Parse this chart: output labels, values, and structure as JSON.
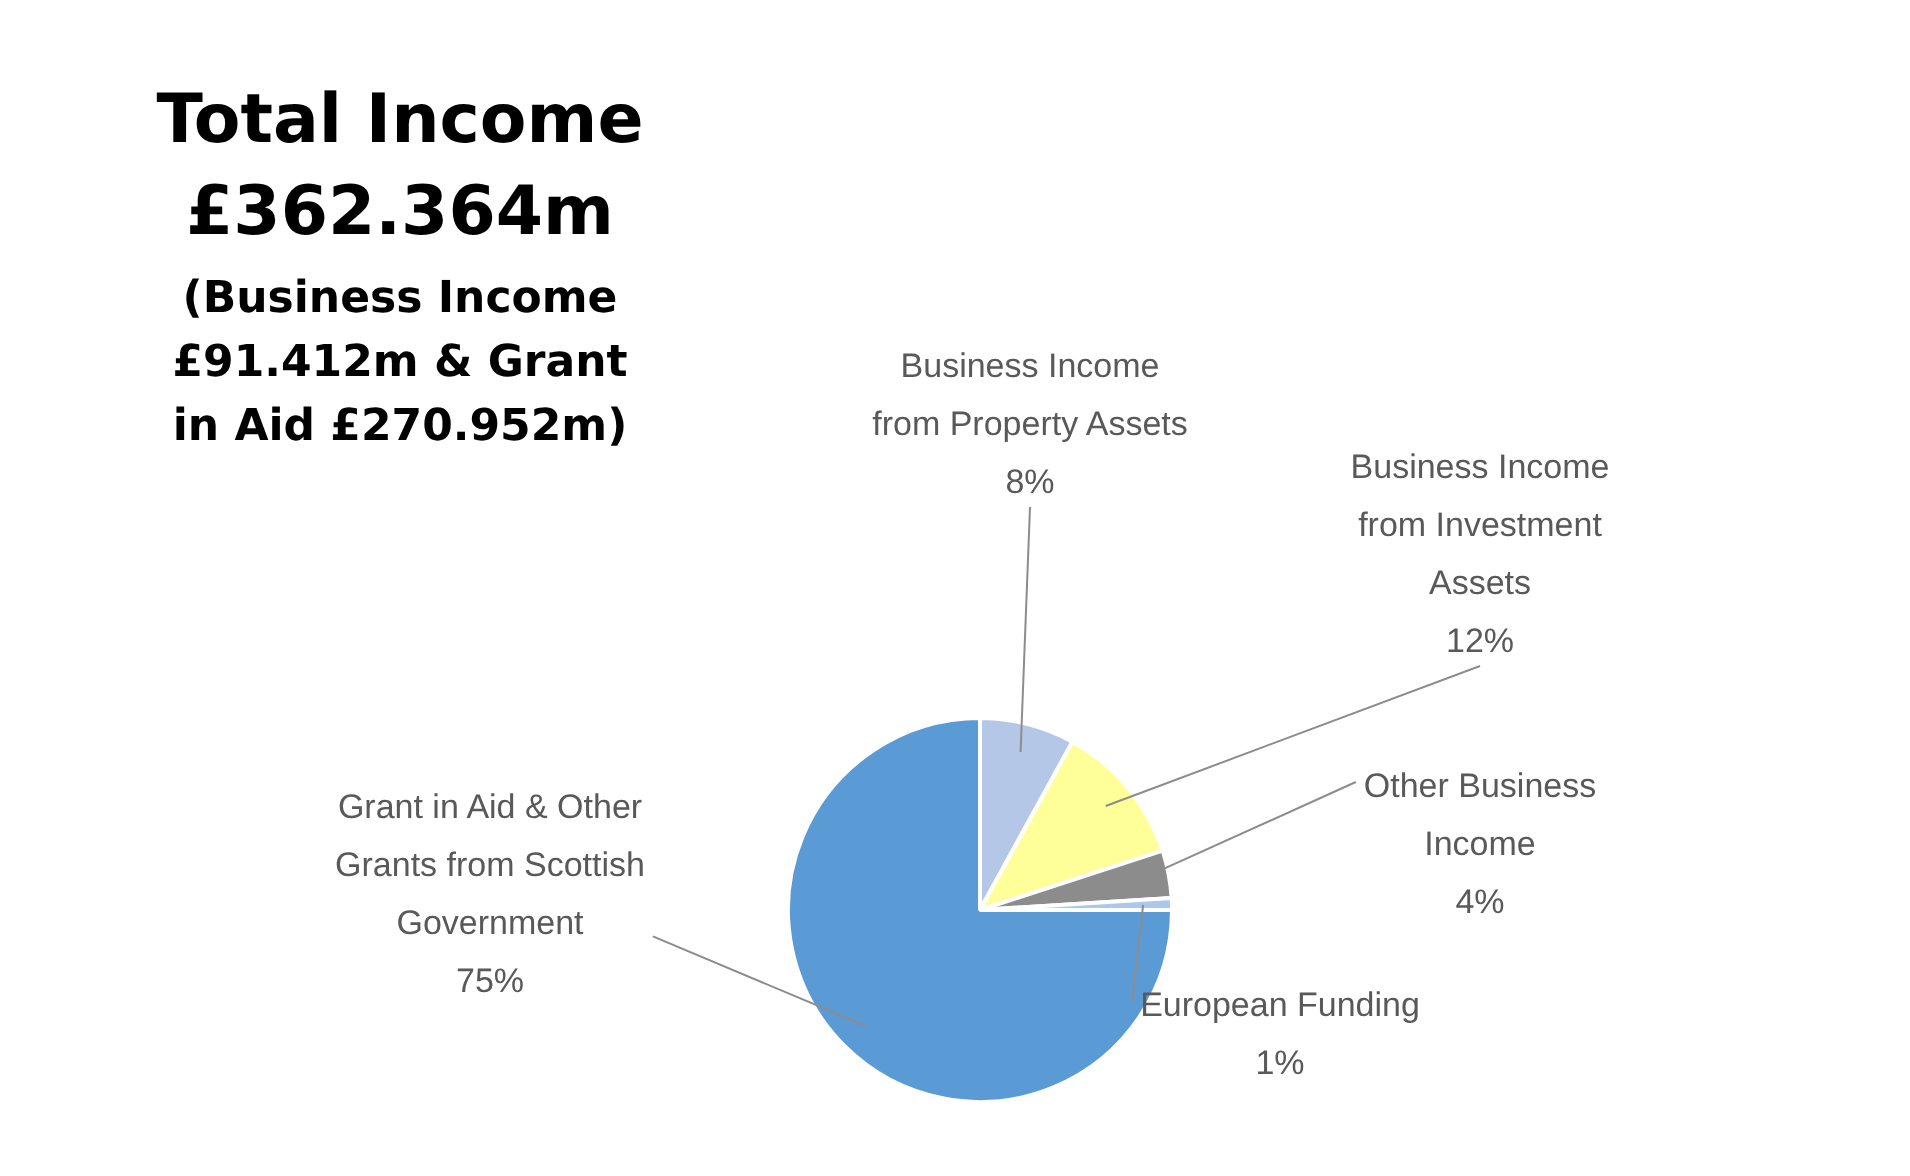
{
  "chart_data": {
    "type": "pie",
    "title": "Total Income",
    "subtitle": "£362.364m",
    "annotations": [
      "(Business Income £91.412m & Grant in Aid £270.952m)"
    ],
    "categories": [
      "Business Income from Property Assets",
      "Business Income from Investment Assets",
      "Other Business Income",
      "European Funding",
      "Grant in Aid & Other Grants from Scottish Government"
    ],
    "values": [
      8,
      12,
      4,
      1,
      75
    ],
    "value_labels": [
      "8%",
      "12%",
      "4%",
      "1%",
      "75%"
    ],
    "colors": [
      "#b4c7e7",
      "#ffff99",
      "#8c8c8c",
      "#a9c8ec",
      "#5b9bd5"
    ],
    "legend": false
  }
}
